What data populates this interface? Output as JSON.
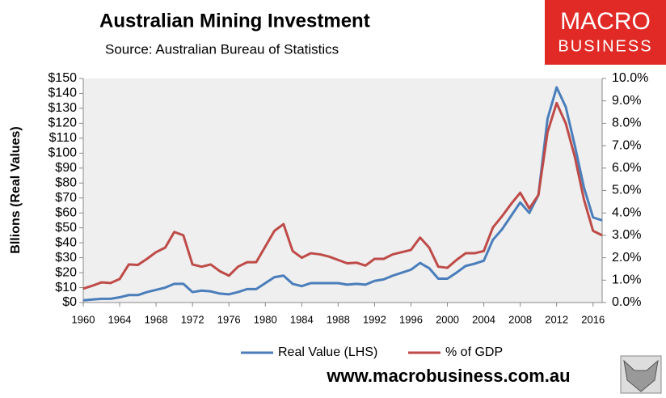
{
  "chart_data": {
    "type": "line",
    "title": "Australian Mining Investment",
    "subtitle": "Source: Australian Bureau of Statistics",
    "ylabel": "Bllions (Real Values)",
    "x": [
      1960,
      1961,
      1962,
      1963,
      1964,
      1965,
      1966,
      1967,
      1968,
      1969,
      1970,
      1971,
      1972,
      1973,
      1974,
      1975,
      1976,
      1977,
      1978,
      1979,
      1980,
      1981,
      1982,
      1983,
      1984,
      1985,
      1986,
      1987,
      1988,
      1989,
      1990,
      1991,
      1992,
      1993,
      1994,
      1995,
      1996,
      1997,
      1998,
      1999,
      2000,
      2001,
      2002,
      2003,
      2004,
      2005,
      2006,
      2007,
      2008,
      2009,
      2010,
      2011,
      2012,
      2013,
      2014,
      2015,
      2016,
      2017
    ],
    "series": [
      {
        "name": "Real Value (LHS)",
        "color": "#4a7ebb",
        "axis": "y",
        "values": [
          1.5,
          2,
          2.5,
          2.5,
          3.5,
          5,
          5,
          7,
          8.5,
          10,
          12.5,
          12.5,
          7,
          8,
          7.5,
          6,
          5.5,
          7,
          9,
          9,
          13,
          17,
          18,
          12.5,
          11,
          13,
          13,
          13,
          13,
          12,
          12.5,
          12,
          14.5,
          15.5,
          18,
          20,
          22,
          26.5,
          23,
          16,
          16,
          20,
          24.5,
          26,
          28,
          42,
          49,
          58,
          67,
          60,
          72,
          123,
          144,
          131,
          105,
          77,
          57,
          55
        ]
      },
      {
        "name": "% of GDP",
        "color": "#be4b48",
        "axis": "y2",
        "values": [
          0.62,
          0.75,
          0.9,
          0.87,
          1.05,
          1.7,
          1.68,
          1.95,
          2.25,
          2.45,
          3.15,
          3.0,
          1.7,
          1.6,
          1.7,
          1.4,
          1.2,
          1.6,
          1.8,
          1.8,
          2.5,
          3.2,
          3.5,
          2.3,
          2.0,
          2.2,
          2.15,
          2.05,
          1.9,
          1.75,
          1.78,
          1.65,
          1.95,
          1.95,
          2.15,
          2.25,
          2.35,
          2.9,
          2.45,
          1.6,
          1.55,
          1.9,
          2.2,
          2.2,
          2.3,
          3.35,
          3.85,
          4.4,
          4.9,
          4.2,
          4.8,
          7.6,
          8.9,
          8.0,
          6.5,
          4.6,
          3.2,
          3.0
        ]
      }
    ],
    "xlim": [
      1960,
      2017
    ],
    "xticks": [
      1960,
      1964,
      1968,
      1972,
      1976,
      1980,
      1984,
      1988,
      1992,
      1996,
      2000,
      2004,
      2008,
      2012,
      2016
    ],
    "ylim": [
      0,
      150
    ],
    "yticks": [
      {
        "value": 0,
        "label": "$0"
      },
      {
        "value": 10,
        "label": "$10"
      },
      {
        "value": 20,
        "label": "$20"
      },
      {
        "value": 30,
        "label": "$30"
      },
      {
        "value": 40,
        "label": "$40"
      },
      {
        "value": 50,
        "label": "$50"
      },
      {
        "value": 60,
        "label": "$60"
      },
      {
        "value": 70,
        "label": "$70"
      },
      {
        "value": 80,
        "label": "$80"
      },
      {
        "value": 90,
        "label": "$90"
      },
      {
        "value": 100,
        "label": "$100"
      },
      {
        "value": 110,
        "label": "$110"
      },
      {
        "value": 120,
        "label": "$120"
      },
      {
        "value": 130,
        "label": "$130"
      },
      {
        "value": 140,
        "label": "$140"
      },
      {
        "value": 150,
        "label": "$150"
      }
    ],
    "y2lim": [
      0,
      10
    ],
    "y2ticks": [
      {
        "value": 0,
        "label": "0.0%"
      },
      {
        "value": 1,
        "label": "1.0%"
      },
      {
        "value": 2,
        "label": "2.0%"
      },
      {
        "value": 3,
        "label": "3.0%"
      },
      {
        "value": 4,
        "label": "4.0%"
      },
      {
        "value": 5,
        "label": "5.0%"
      },
      {
        "value": 6,
        "label": "6.0%"
      },
      {
        "value": 7,
        "label": "7.0%"
      },
      {
        "value": 8,
        "label": "8.0%"
      },
      {
        "value": 9,
        "label": "9.0%"
      },
      {
        "value": 10,
        "label": "10.0%"
      }
    ],
    "grid": false,
    "legend": "bottom"
  },
  "branding": {
    "logo": [
      "MACRO",
      "BUSINESS"
    ],
    "url": "www.macrobusiness.com.au"
  }
}
